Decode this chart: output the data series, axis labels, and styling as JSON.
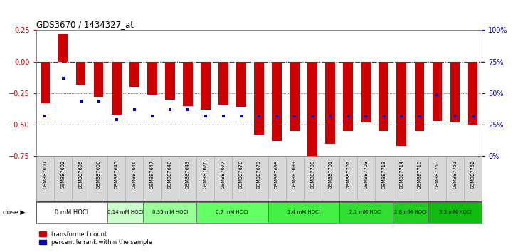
{
  "title": "GDS3670 / 1434327_at",
  "samples": [
    "GSM387601",
    "GSM387602",
    "GSM387605",
    "GSM387606",
    "GSM387645",
    "GSM387646",
    "GSM387647",
    "GSM387648",
    "GSM387649",
    "GSM387676",
    "GSM387677",
    "GSM387678",
    "GSM387679",
    "GSM387698",
    "GSM387699",
    "GSM387700",
    "GSM387701",
    "GSM387702",
    "GSM387703",
    "GSM387713",
    "GSM387714",
    "GSM387716",
    "GSM387750",
    "GSM387751",
    "GSM387752"
  ],
  "red_values": [
    -0.33,
    0.22,
    -0.18,
    -0.28,
    -0.42,
    -0.2,
    -0.26,
    -0.3,
    -0.35,
    -0.38,
    -0.34,
    -0.36,
    -0.58,
    -0.63,
    -0.55,
    -0.75,
    -0.65,
    -0.55,
    -0.48,
    -0.55,
    -0.67,
    -0.55,
    -0.47,
    -0.48,
    -0.5
  ],
  "blue_percentiles": [
    0.32,
    0.62,
    0.44,
    0.44,
    0.29,
    0.37,
    0.32,
    0.37,
    0.37,
    0.32,
    0.32,
    0.32,
    0.32,
    0.32,
    0.32,
    0.32,
    0.32,
    0.32,
    0.32,
    0.32,
    0.32,
    0.32,
    0.49,
    0.32,
    0.32
  ],
  "dose_groups": [
    {
      "label": "0 mM HOCl",
      "start": 0,
      "end": 4,
      "color": "#ffffff"
    },
    {
      "label": "0.14 mM HOCl",
      "start": 4,
      "end": 6,
      "color": "#ccffcc"
    },
    {
      "label": "0.35 mM HOCl",
      "start": 6,
      "end": 9,
      "color": "#99ff99"
    },
    {
      "label": "0.7 mM HOCl",
      "start": 9,
      "end": 13,
      "color": "#66ff66"
    },
    {
      "label": "1.4 mM HOCl",
      "start": 13,
      "end": 17,
      "color": "#44ee44"
    },
    {
      "label": "2.1 mM HOCl",
      "start": 17,
      "end": 20,
      "color": "#33dd33"
    },
    {
      "label": "2.8 mM HOCl",
      "start": 20,
      "end": 22,
      "color": "#22cc22"
    },
    {
      "label": "3.5 mM HOCl",
      "start": 22,
      "end": 25,
      "color": "#11bb11"
    }
  ],
  "ylim_left": [
    -0.75,
    0.25
  ],
  "left_yticks": [
    -0.75,
    -0.5,
    -0.25,
    0,
    0.25
  ],
  "right_yticks": [
    0.0,
    0.25,
    0.5,
    0.75,
    1.0
  ],
  "right_yticklabels": [
    "0%",
    "25%",
    "50%",
    "75%",
    "100%"
  ],
  "bar_color": "#cc0000",
  "blue_color": "#0000cc",
  "bg_color": "#ffffff",
  "gray_bg": "#d8d8d8"
}
